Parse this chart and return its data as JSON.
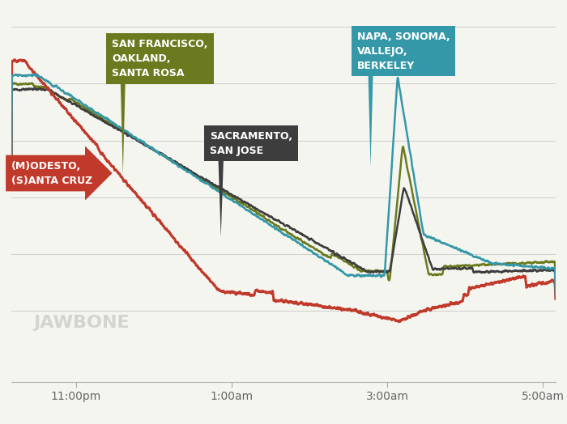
{
  "background_color": "#f5f5f0",
  "grid_color": "#d0d0cc",
  "x_ticks_labels": [
    "11:00pm",
    "1:00am",
    "3:00am",
    "5:00am"
  ],
  "colors": {
    "red": "#c0392b",
    "blue": "#3498a8",
    "olive": "#6b7a1e",
    "dark": "#3d3d3d"
  },
  "jawbone_text": "JAWBONE",
  "jawbone_color": "#cccccc",
  "ann_sf_color": "#6b7a1e",
  "ann_sac_color": "#3d3d3d",
  "ann_napa_color": "#3498a8",
  "ann_mod_color": "#c0392b"
}
